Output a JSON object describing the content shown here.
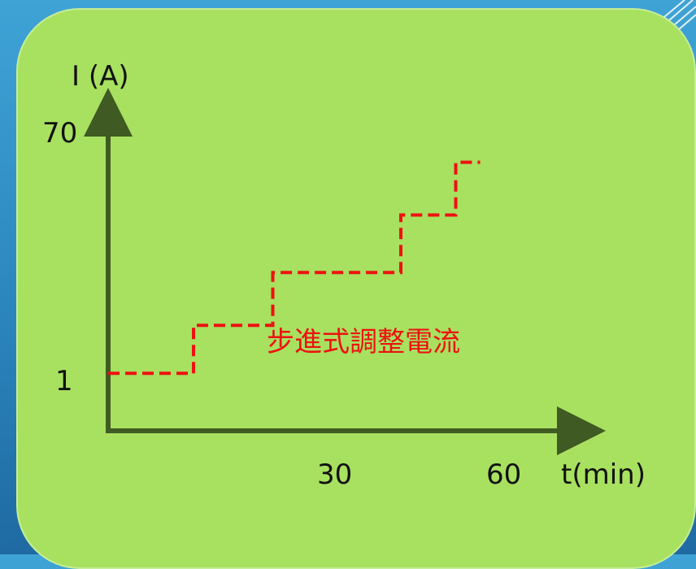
{
  "colors": {
    "background": "#2c86be",
    "panel": "#a8e060",
    "axis": "#3f5a22",
    "series": "#ee1111",
    "text": "#111111"
  },
  "chart_data": {
    "type": "line",
    "ylabel": "I (A)",
    "xlabel": "t(min)",
    "ytick_labels": [
      "70",
      "1"
    ],
    "xtick_labels": [
      "30",
      "60"
    ],
    "grid": false,
    "series": [
      {
        "style": "dashed step",
        "x": [
          0,
          14,
          14,
          27,
          27,
          48,
          48,
          57,
          57,
          61
        ],
        "y": [
          12,
          12,
          22,
          22,
          33,
          33,
          45,
          45,
          56,
          56
        ]
      }
    ],
    "annotations": [
      {
        "text": "步進式調整電流"
      }
    ]
  }
}
